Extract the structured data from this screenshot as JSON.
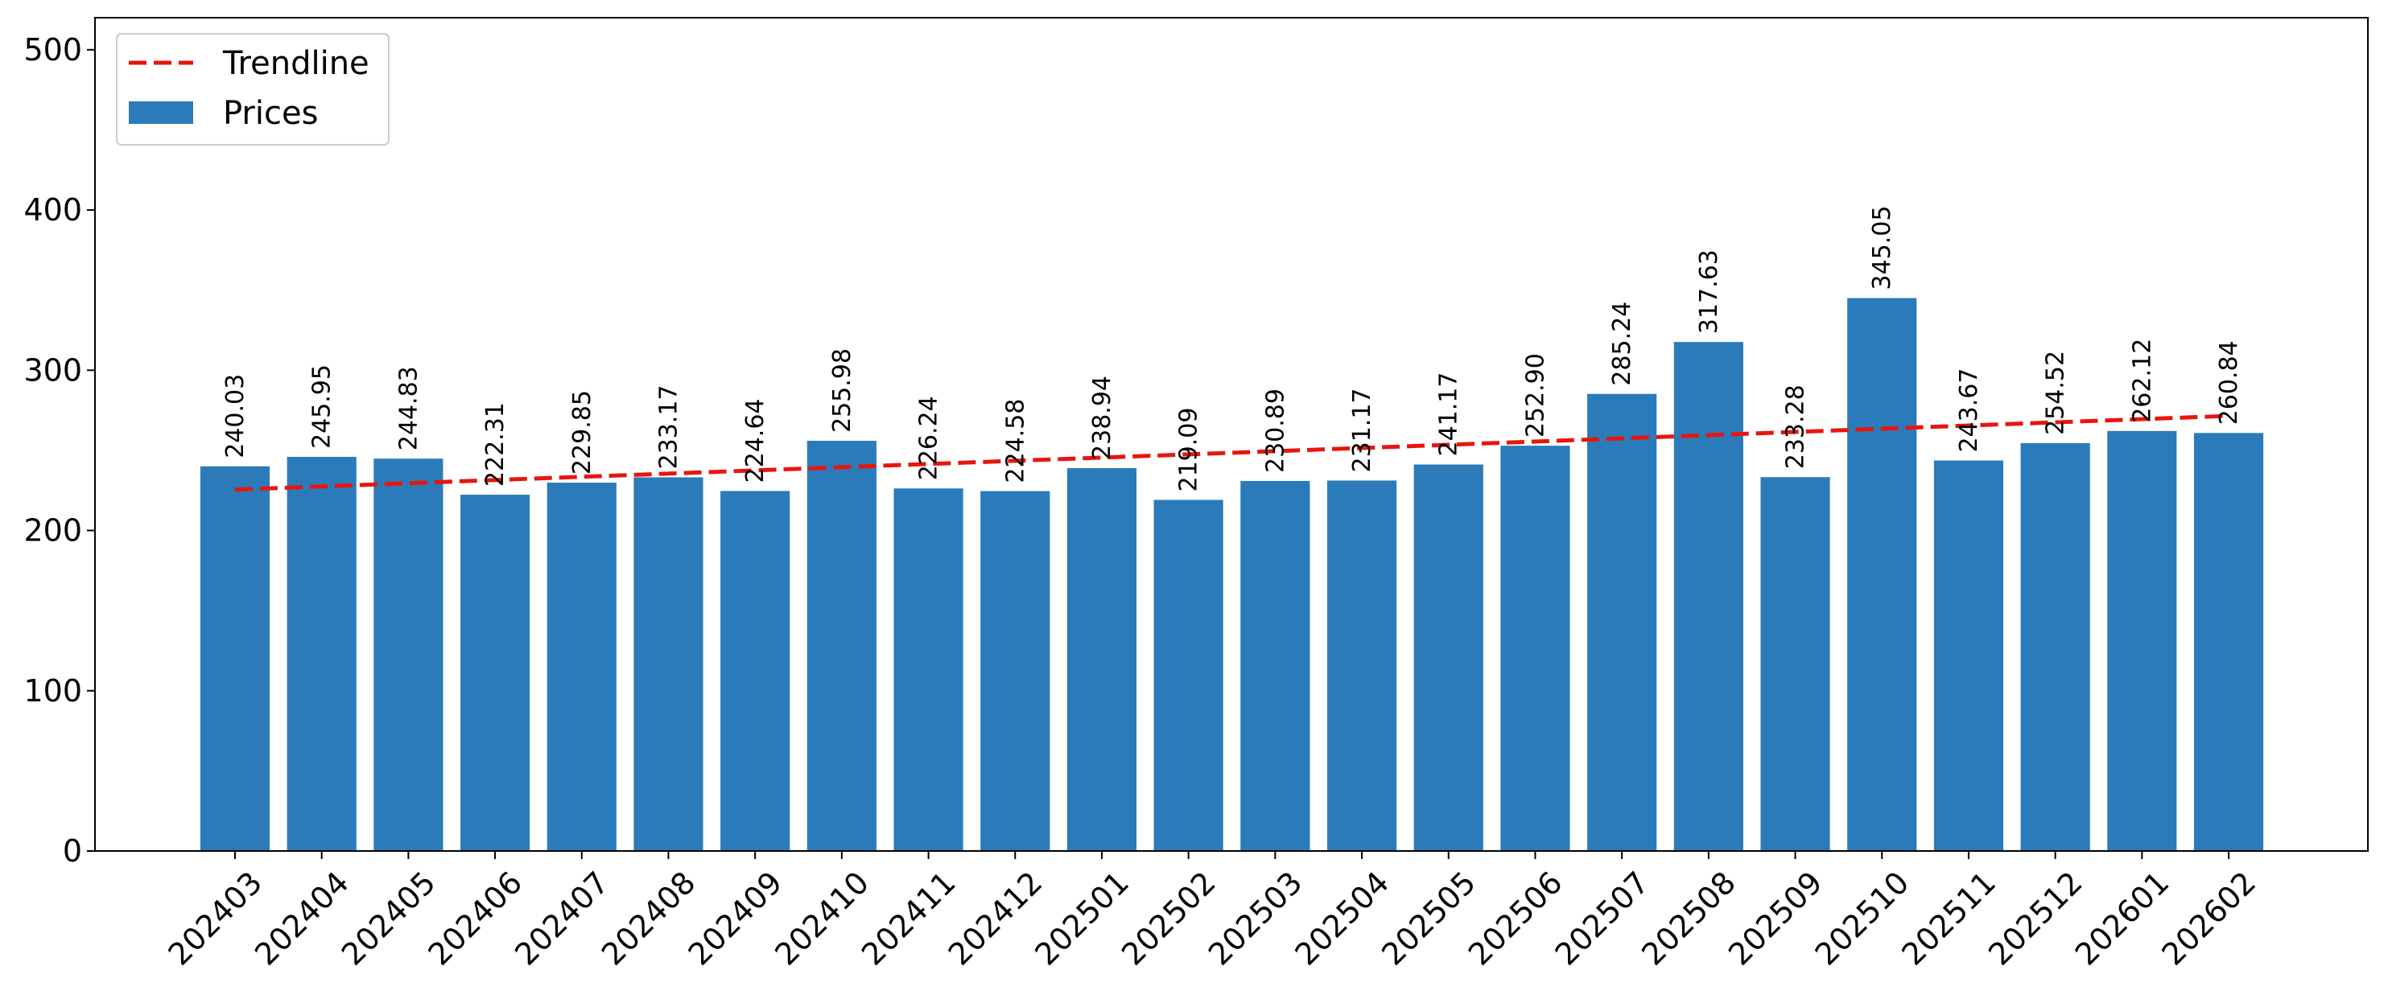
{
  "chart_data": {
    "type": "bar",
    "title": "",
    "xlabel": "",
    "ylabel": "",
    "ylim": [
      0,
      520
    ],
    "yticks": [
      0,
      100,
      200,
      300,
      400,
      500
    ],
    "grid": false,
    "legend_position": "top-left",
    "categories": [
      "202403",
      "202404",
      "202405",
      "202406",
      "202407",
      "202408",
      "202409",
      "202410",
      "202411",
      "202412",
      "202501",
      "202502",
      "202503",
      "202504",
      "202505",
      "202506",
      "202507",
      "202508",
      "202509",
      "202510",
      "202511",
      "202512",
      "202601",
      "202602"
    ],
    "series": [
      {
        "name": "Prices",
        "kind": "bar",
        "color": "#2b7bba",
        "values": [
          240.03,
          245.95,
          244.83,
          222.31,
          229.85,
          233.17,
          224.64,
          255.98,
          226.24,
          224.58,
          238.94,
          219.09,
          230.89,
          231.17,
          241.17,
          252.9,
          285.24,
          317.63,
          233.28,
          345.05,
          243.67,
          254.52,
          262.12,
          260.84
        ],
        "labels": [
          "240.03",
          "245.95",
          "244.83",
          "222.31",
          "229.85",
          "233.17",
          "224.64",
          "255.98",
          "226.24",
          "224.58",
          "238.94",
          "219.09",
          "230.89",
          "231.17",
          "241.17",
          "252.90",
          "285.24",
          "317.63",
          "233.28",
          "345.05",
          "243.67",
          "254.52",
          "262.12",
          "260.84"
        ]
      },
      {
        "name": "Trendline",
        "kind": "line",
        "style": "dashed",
        "color": "#e8150f",
        "start": 225.5,
        "end": 271.5
      }
    ]
  }
}
